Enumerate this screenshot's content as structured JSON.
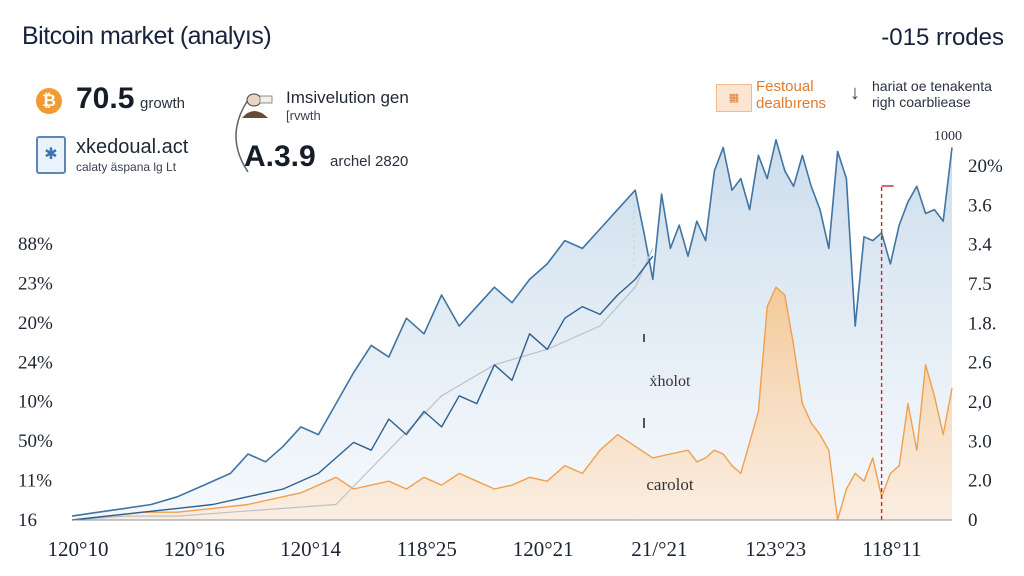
{
  "header": {
    "title": "Bitcoin market (analyıs)",
    "top_right": "-015 rrodes"
  },
  "stats": {
    "stat1_value": "70.5",
    "stat1_label": "growth",
    "stat2_title": "xkedoual.act",
    "stat2_sub": "calaty äspana lg Lt",
    "stat3_title": "Imsivelution gen",
    "stat3_sub": "[rvwth",
    "stat3_value": "A.3.9",
    "stat3_label": "archel 2820"
  },
  "legend": {
    "festival_label": "Festoual dealbırens",
    "annotation_top_right": "hariat oe tenakenta righ coarbliease"
  },
  "icons": {
    "btc": "bitcoin-icon",
    "box": "snowflake-box-icon",
    "person": "person-illustration-icon",
    "festival": "festival-badge-icon",
    "arrow": "arrow-down-icon"
  },
  "colors": {
    "blue_line": "#3f74a3",
    "blue_fill": "#dbe7f2",
    "orange_line": "#f0a04d",
    "orange_fill": "#f8d8b5",
    "red_marker": "#c62828",
    "gray_line": "#b9c2cc"
  },
  "chart_data": {
    "type": "area",
    "title": "Bitcoin market (analyıs)",
    "y_left_ticks": [
      "88%",
      "23%",
      "20%",
      "24%",
      "10%",
      "50%",
      "11%",
      "16"
    ],
    "y_right_ticks": [
      "20%",
      "3.6",
      "3.4",
      "7.5",
      "1.8.",
      "2.6",
      "2,0",
      "3.0",
      "2.0",
      "0"
    ],
    "x_ticks": [
      "120°10",
      "120°16",
      "120°14",
      "118°25",
      "120°21",
      "21/°21",
      "123°23",
      "118°11"
    ],
    "annotations": [
      "1000",
      "ẋholot",
      "carolot"
    ],
    "grid": false,
    "x_range": [
      0,
      100
    ],
    "y_range": [
      0,
      100
    ],
    "series": [
      {
        "kind": "blue-main",
        "x": [
          0,
          3,
          6,
          9,
          12,
          15,
          18,
          20,
          22,
          24,
          26,
          28,
          30,
          32,
          34,
          36,
          38,
          40,
          42,
          44,
          46,
          48,
          50,
          52,
          54,
          56,
          58,
          60,
          62,
          64,
          65,
          66,
          67,
          68,
          69,
          70,
          71,
          72,
          73,
          74,
          75,
          76,
          77,
          78,
          79,
          80,
          81,
          82,
          83,
          84,
          85,
          86,
          87,
          88,
          89,
          90,
          91,
          92,
          93,
          94,
          95,
          96,
          97,
          98,
          99,
          100
        ],
        "y": [
          1,
          2,
          3,
          4,
          6,
          9,
          12,
          17,
          15,
          19,
          24,
          22,
          30,
          38,
          45,
          42,
          52,
          48,
          58,
          50,
          55,
          60,
          56,
          62,
          66,
          72,
          70,
          75,
          80,
          85,
          74,
          62,
          84,
          70,
          76,
          68,
          77,
          72,
          90,
          96,
          85,
          88,
          80,
          94,
          88,
          98,
          90,
          86,
          94,
          86,
          80,
          70,
          95,
          88,
          50,
          73,
          72,
          74,
          66,
          76,
          82,
          86,
          79,
          80,
          77,
          96
        ],
        "fill_to": 0
      },
      {
        "kind": "blue-secondary",
        "x": [
          0,
          4,
          8,
          12,
          16,
          20,
          24,
          28,
          32,
          34,
          36,
          38,
          40,
          42,
          44,
          46,
          48,
          50,
          52,
          54,
          56,
          58,
          60,
          62,
          64,
          66
        ],
        "y": [
          0,
          1,
          2,
          3,
          4,
          6,
          8,
          12,
          20,
          18,
          26,
          22,
          28,
          24,
          32,
          30,
          40,
          36,
          48,
          44,
          52,
          55,
          53,
          58,
          62,
          68
        ]
      },
      {
        "kind": "gray",
        "x": [
          0,
          6,
          12,
          18,
          24,
          30,
          36,
          42,
          48,
          54,
          60,
          62,
          64,
          66
        ],
        "y": [
          0,
          1,
          1,
          2,
          3,
          4,
          18,
          32,
          40,
          44,
          50,
          55,
          60,
          70
        ]
      },
      {
        "kind": "orange",
        "x": [
          0,
          4,
          8,
          12,
          16,
          20,
          24,
          26,
          28,
          30,
          32,
          34,
          36,
          38,
          40,
          42,
          44,
          46,
          48,
          50,
          52,
          54,
          56,
          58,
          60,
          62,
          64,
          66,
          68,
          70,
          71,
          72,
          73,
          74,
          75,
          76,
          77,
          78,
          79,
          80,
          81,
          82,
          83,
          84,
          85,
          86,
          87,
          88,
          89,
          90,
          91,
          92,
          93,
          94,
          95,
          96,
          97,
          98,
          99,
          100
        ],
        "y": [
          0,
          1,
          2,
          2,
          3,
          4,
          6,
          7,
          9,
          11,
          8,
          9,
          10,
          8,
          11,
          9,
          12,
          10,
          8,
          9,
          11,
          10,
          14,
          12,
          18,
          22,
          19,
          16,
          17,
          18,
          15,
          16,
          18,
          17,
          14,
          12,
          20,
          28,
          55,
          60,
          58,
          45,
          30,
          25,
          22,
          18,
          0,
          8,
          12,
          10,
          16,
          6,
          12,
          14,
          30,
          18,
          40,
          32,
          22,
          34
        ]
      }
    ],
    "vertical_markers": [
      {
        "kind": "dashed-gray",
        "x": 65
      },
      {
        "kind": "dashed-red",
        "x": 92
      }
    ]
  }
}
